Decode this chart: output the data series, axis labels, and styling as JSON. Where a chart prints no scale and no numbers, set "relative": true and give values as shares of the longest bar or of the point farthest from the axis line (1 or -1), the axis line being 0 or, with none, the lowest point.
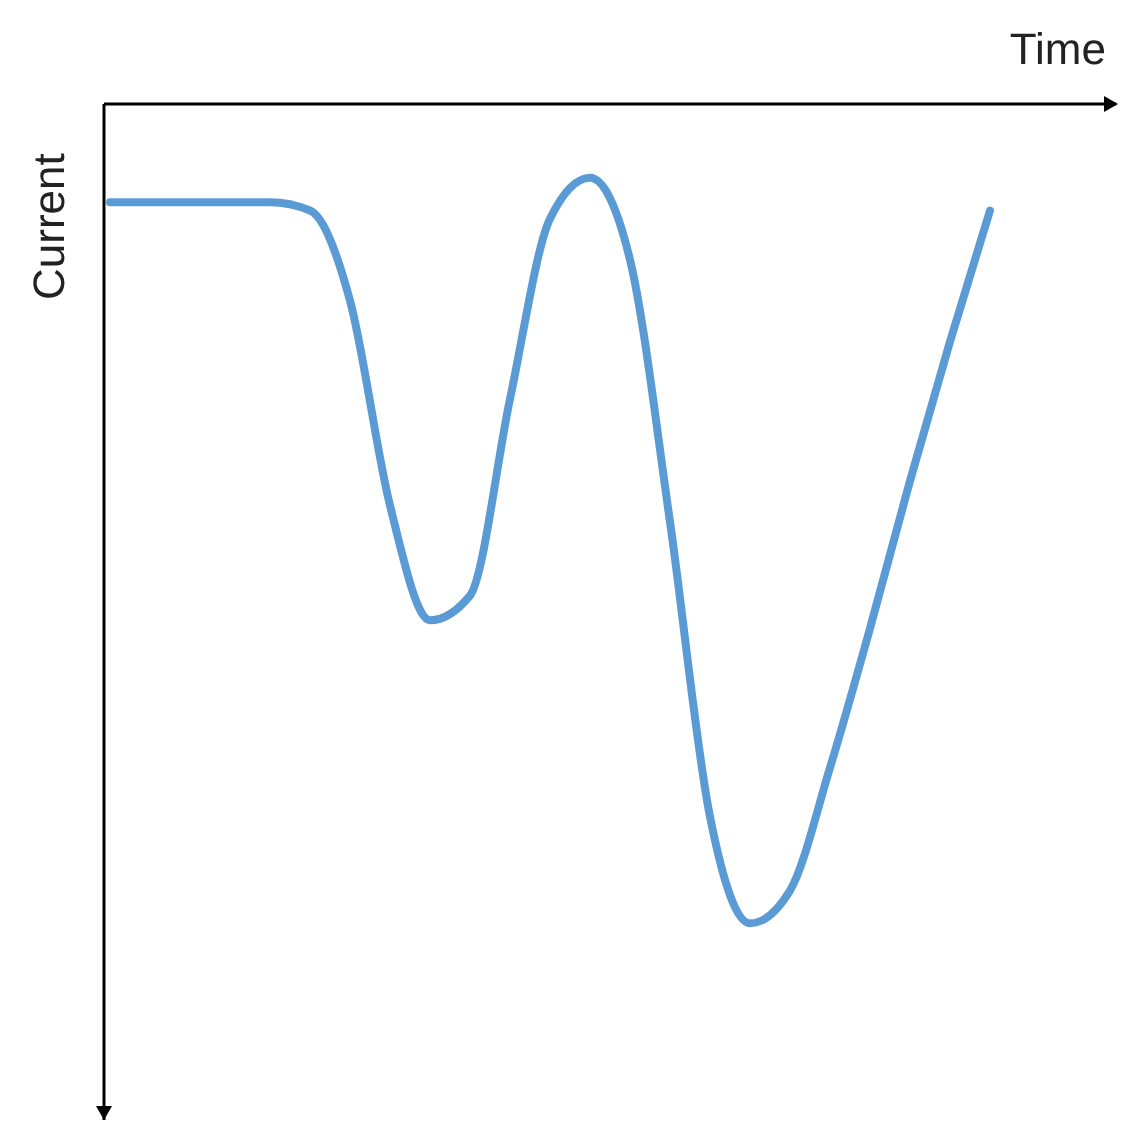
{
  "chart_data": {
    "type": "line",
    "relative": true,
    "xlabel": "Time",
    "ylabel": "Current",
    "categories": [
      null,
      null,
      null,
      null,
      null,
      null,
      null,
      null,
      null,
      null,
      null,
      null,
      null,
      null,
      null,
      null,
      null,
      null,
      null,
      null,
      null,
      null,
      null,
      null,
      null,
      null
    ],
    "series": [
      {
        "color": "#5b9bd5",
        "values": [
          -0.12,
          -0.12,
          -0.12,
          -0.12,
          -0.12,
          -0.13,
          -0.24,
          -0.49,
          -0.63,
          -0.6,
          -0.36,
          -0.14,
          -0.09,
          -0.19,
          -0.51,
          -0.87,
          -1,
          -0.96,
          -0.81,
          -0.64,
          -0.46,
          -0.29,
          -0.13,
          null,
          null,
          null
        ]
      }
    ],
    "marker": "none",
    "line_style": "solid",
    "grid": false,
    "legend": false
  }
}
